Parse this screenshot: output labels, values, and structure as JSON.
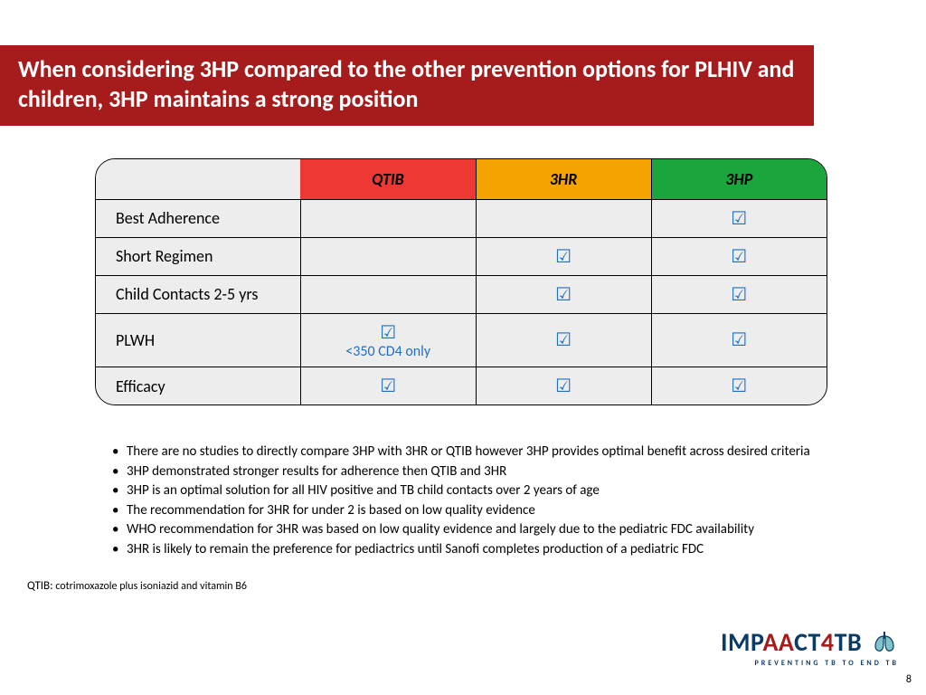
{
  "title": "When considering 3HP compared to the other prevention options for PLHIV and children, 3HP maintains a strong position",
  "colors": {
    "title_bg": "#a61c1c",
    "title_text": "#ffffff",
    "table_bg": "#ededed",
    "border": "#000000",
    "check": "#1f6fc4",
    "h_qtib": "#ed3833",
    "h_3hr": "#f5a300",
    "h_3hp": "#1aa63c"
  },
  "table": {
    "columns": [
      "QTIB",
      "3HR",
      "3HP"
    ],
    "col_bg": [
      "#ed3833",
      "#f5a300",
      "#1aa63c"
    ],
    "col_widths_pct": [
      28,
      24,
      24,
      24
    ],
    "rows": [
      {
        "label": "Best Adherence",
        "cells": [
          "",
          "",
          "check"
        ]
      },
      {
        "label": "Short Regimen",
        "cells": [
          "",
          "check",
          "check"
        ]
      },
      {
        "label": "Child Contacts 2-5 yrs",
        "cells": [
          "",
          "check",
          "check"
        ]
      },
      {
        "label": "PLWH",
        "cells": [
          "check_sub",
          "check",
          "check"
        ],
        "subnote": "<350 CD4 only"
      },
      {
        "label": "Efficacy",
        "cells": [
          "check",
          "check",
          "check"
        ]
      }
    ],
    "check_glyph": "☑"
  },
  "bullets": [
    "There are no studies to  directly compare 3HP with 3HR or QTIB however 3HP provides optimal benefit across desired criteria",
    "3HP demonstrated stronger results for adherence then QTIB and 3HR",
    "3HP is an optimal solution for all HIV positive and TB child contacts over 2 years of age",
    "The recommendation for 3HR for under 2 is based on low quality evidence",
    "WHO recommendation for 3HR was based on low quality evidence and largely due to the pediatric FDC availability",
    "3HR is likely to remain the preference for pediactrics until Sanofi completes production of a pediatric FDC"
  ],
  "footnote": {
    "abbr": "QTIB:",
    "def": "cotrimoxazole plus isoniazid and vitamin B6"
  },
  "logo": {
    "line1_parts": [
      "IMP",
      "AA",
      "CT",
      "4",
      "TB"
    ],
    "line2": "PREVENTING TB TO END TB"
  },
  "page_number": "8"
}
